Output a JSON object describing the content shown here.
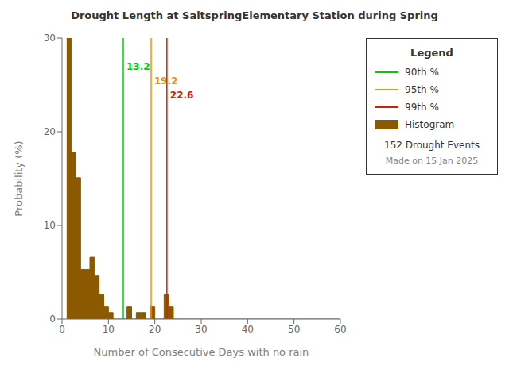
{
  "chart_data": {
    "type": "histogram",
    "title": "Drought Length at SaltspringElementary Station during Spring",
    "x_label": "Number of Consecutive Days with no rain",
    "y_label": "Probability (%)",
    "bins": [
      1,
      2,
      3,
      4,
      5,
      6,
      7,
      8,
      9,
      10,
      11,
      12,
      13,
      14,
      15,
      16,
      17,
      18,
      19,
      20,
      21,
      22,
      23,
      24,
      25,
      26,
      27,
      28,
      29,
      30,
      31,
      32,
      33,
      34,
      35,
      36,
      37,
      38,
      39,
      40,
      41,
      42,
      43,
      44,
      45,
      46,
      47,
      48,
      49,
      50,
      51,
      52,
      53,
      54,
      55,
      56,
      57,
      58,
      59,
      60
    ],
    "series": [
      {
        "name": "Histogram",
        "color": "#8B5A00",
        "values": [
          30.0,
          17.8,
          15.1,
          5.3,
          5.3,
          6.6,
          4.6,
          2.6,
          1.3,
          0.7,
          0.0,
          0.0,
          0.0,
          1.3,
          0.0,
          0.7,
          0.7,
          0.0,
          1.3,
          0.0,
          0.0,
          2.6,
          1.3,
          0.0,
          0.0,
          0.0,
          0.0,
          0.0,
          0.0,
          0.0,
          0.0,
          0.0,
          0.0,
          0.0,
          0.0,
          0.0,
          0.0,
          0.0,
          0.0,
          0.0,
          0.0,
          0.0,
          0.0,
          0.0,
          0.0,
          0.0,
          0.0,
          0.0,
          0.0,
          0.0,
          0.0,
          0.0,
          0.0,
          0.0,
          0.0,
          0.0,
          0.0,
          0.0,
          0.0
        ]
      }
    ],
    "vlines": [
      {
        "name": "90th %",
        "x": 13.2,
        "color": "#00CC00"
      },
      {
        "name": "95th %",
        "x": 19.2,
        "color": "#FF8C00"
      },
      {
        "name": "99th %",
        "x": 22.6,
        "color": "#CC2200"
      }
    ],
    "xlim": [
      0,
      60
    ],
    "xticks": [
      0,
      10,
      20,
      30,
      40,
      50,
      60
    ],
    "ylim": [
      0,
      30
    ],
    "yticks": [
      0,
      10,
      20,
      30
    ],
    "grid": false,
    "legend_title": "Legend",
    "annotations": [
      "152 Drought Events",
      "Made on 15 Jan 2025"
    ]
  }
}
